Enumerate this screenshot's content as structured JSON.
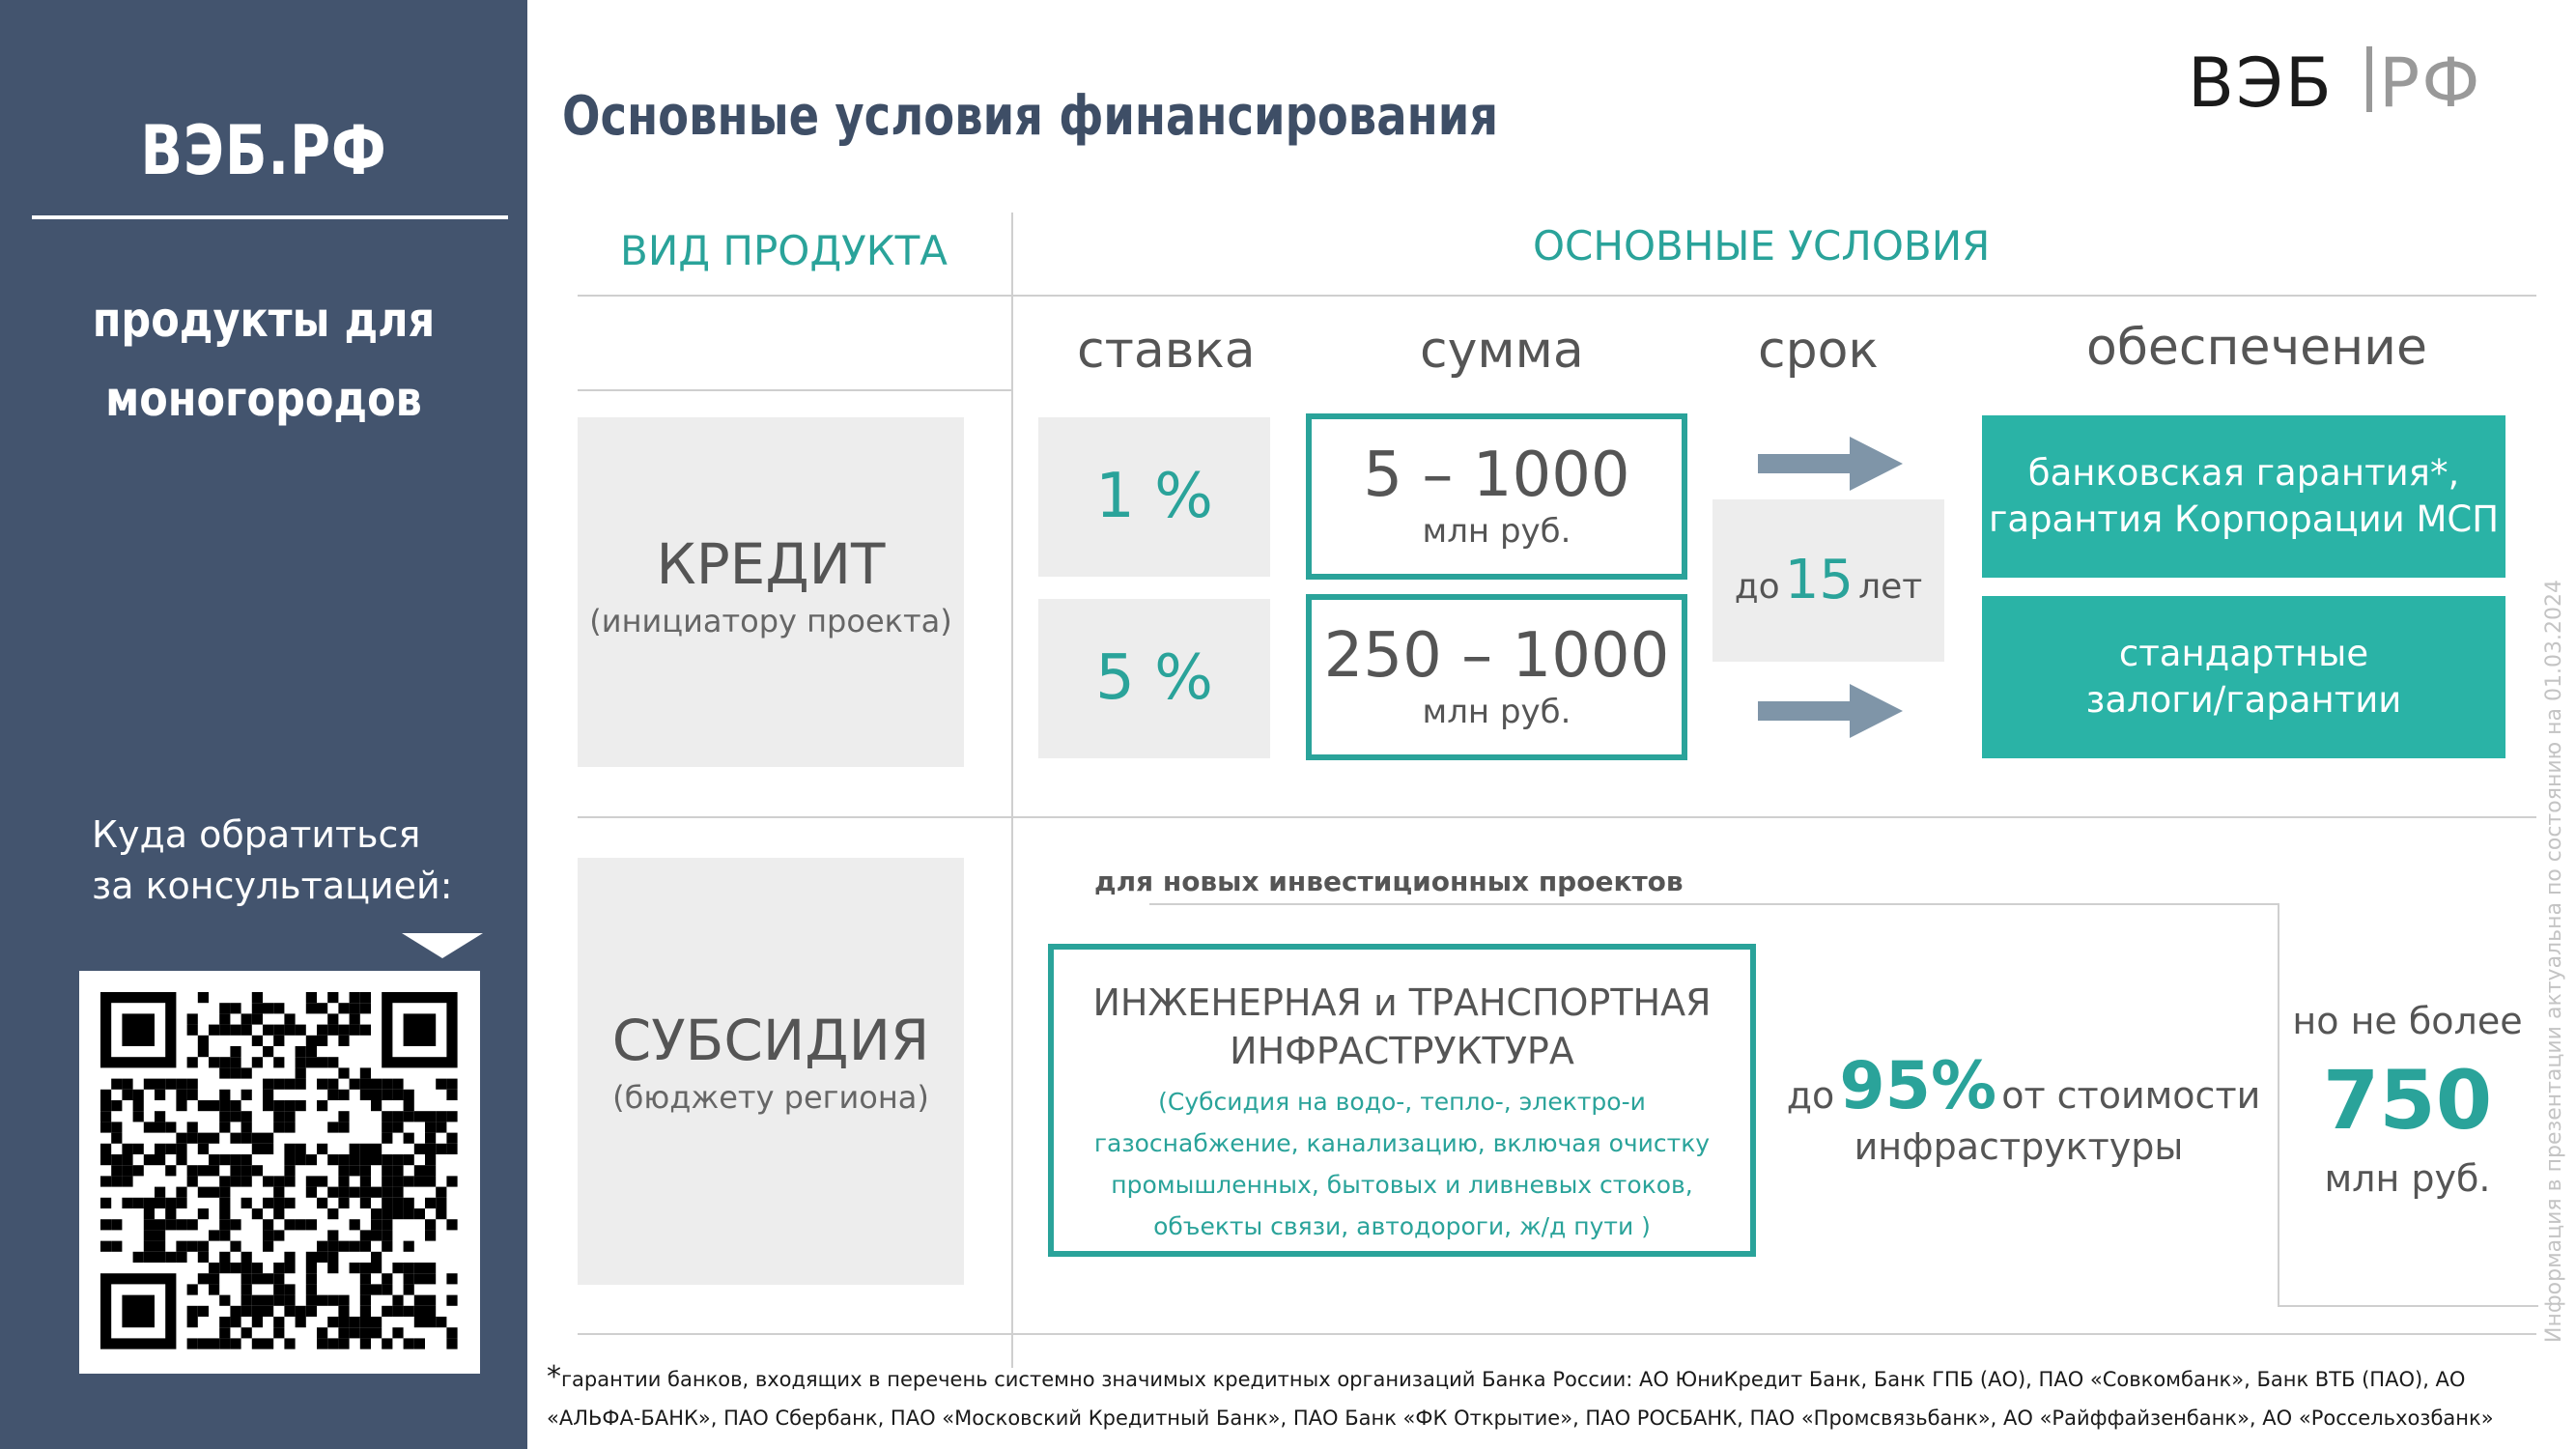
{
  "sidebar": {
    "brand": "ВЭБ.РФ",
    "title_line1": "продукты для",
    "title_line2": "моногородов",
    "consult_line1": "Куда обратиться",
    "consult_line2": "за консультацией:",
    "qr_icon": "qr-code-icon"
  },
  "header": {
    "title": "Основные условия финансирования",
    "logo_left": "ВЭБ",
    "logo_right": "РФ"
  },
  "sections": {
    "product_type": "ВИД ПРОДУКТА",
    "main_conditions": "ОСНОВНЫЕ УСЛОВИЯ"
  },
  "columns": {
    "rate": "ставка",
    "amount": "сумма",
    "term": "срок",
    "collateral": "обеспечение"
  },
  "credit": {
    "title": "КРЕДИТ",
    "subtitle": "(инициатору проекта)",
    "rate1": "1 %",
    "rate2": "5 %",
    "amount1": "5 – 1000",
    "amount2": "250 – 1000",
    "amount_unit": "млн руб.",
    "term_prefix": "до",
    "term_value": "15",
    "term_suffix": "лет",
    "collateral1_line1": "банковская гарантия*,",
    "collateral1_line2": "гарантия Корпорации МСП",
    "collateral2_line1": "стандартные",
    "collateral2_line2": "залоги/гарантии"
  },
  "subsidy": {
    "title": "СУБСИДИЯ",
    "subtitle": "(бюджету региона)",
    "new_projects": "для новых инвестиционных проектов",
    "infra_title_line1": "ИНЖЕНЕРНАЯ и ТРАНСПОРТНАЯ",
    "infra_title_line2": "ИНФРАСТРУКТУРА",
    "infra_desc_line1": "(Субсидия на водо-, тепло-, электро-и",
    "infra_desc_line2": "газоснабжение, канализацию, включая очистку",
    "infra_desc_line3": "промышленных, бытовых и ливневых стоков,",
    "infra_desc_line4": "объекты связи, автодороги, ж/д пути )",
    "share_prefix": "до",
    "share_value": "95%",
    "share_suffix": "от стоимости",
    "share_line2": "инфраструктуры",
    "max_line1": "но не более",
    "max_value": "750",
    "max_unit": "млн руб."
  },
  "footnote": {
    "mark": "*",
    "line1": "гарантии банков, входящих в перечень системно значимых кредитных организаций Банка России: АО ЮниКредит Банк, Банк ГПБ (АО), ПАО «Совкомбанк», Банк ВТБ (ПАО), АО",
    "line2": "«АЛЬФА-БАНК», ПАО Сбербанк, ПАО «Московский Кредитный Банк», ПАО Банк «ФК Открытие», ПАО РОСБАНК, ПАО «Промсвязьбанк», АО «Райффайзенбанк», АО «Россельхозбанк»"
  },
  "side_note": "Информация в презентации актуальна по состоянию на 01.03.2024",
  "colors": {
    "sidebar": "#43546E",
    "teal": "#2AB3A6",
    "teal_text": "#2AA39A",
    "grey_box": "#EDEDED",
    "arrow": "#7F95A8"
  }
}
